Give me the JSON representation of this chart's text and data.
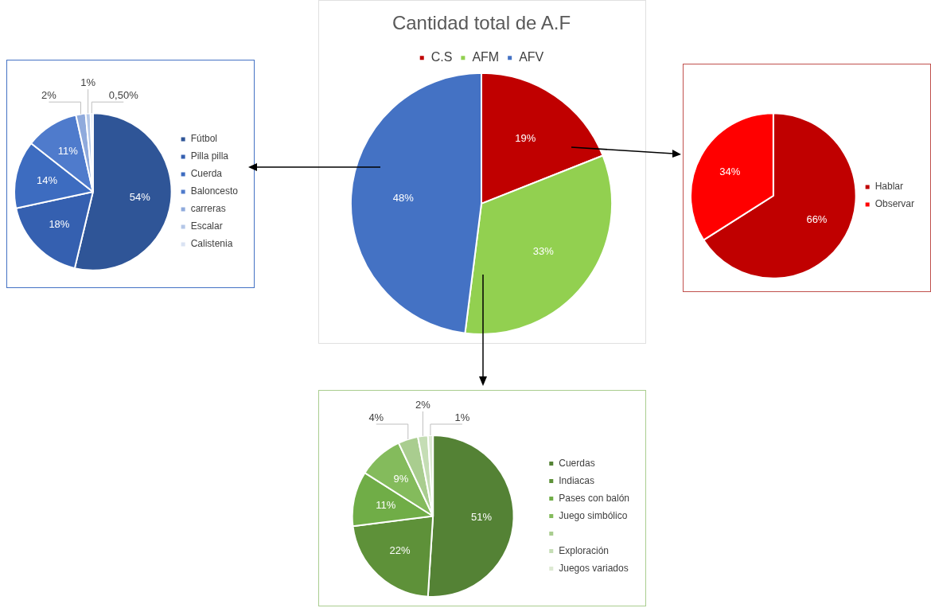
{
  "chart_data": [
    {
      "type": "pie",
      "categories": [
        "Fútbol",
        "Pilla pilla",
        "Cuerda",
        "Baloncesto",
        "carreras",
        "Escalar",
        "Calistenia"
      ],
      "values": [
        54,
        18,
        14,
        11,
        2,
        1,
        0.5
      ],
      "colors": [
        "#2f5597",
        "#3560b0",
        "#3d6cc0",
        "#4f7bcc",
        "#8faadc",
        "#b4c7e7",
        "#dae3f3"
      ],
      "value_labels": [
        "54%",
        "18%",
        "14%",
        "11%",
        "2%",
        "1%",
        "0,50%"
      ],
      "legend": "right"
    },
    {
      "type": "pie",
      "title": "Cantidad total de A.F",
      "categories": [
        "C.S",
        "AFM",
        "AFV"
      ],
      "values": [
        19,
        33,
        48
      ],
      "colors": [
        "#c00000",
        "#92d050",
        "#4472c4"
      ],
      "value_labels": [
        "19%",
        "33%",
        "48%"
      ],
      "legend": "top"
    },
    {
      "type": "pie",
      "categories": [
        "Hablar",
        "Observar"
      ],
      "values": [
        66,
        34
      ],
      "colors": [
        "#c00000",
        "#ff0000"
      ],
      "value_labels": [
        "66%",
        "34%"
      ],
      "legend": "right"
    },
    {
      "type": "pie",
      "categories": [
        "Cuerdas",
        "Indiacas",
        "Pases con balón",
        "Juego simbólico",
        null,
        "Exploración",
        "Juegos variados"
      ],
      "values": [
        51,
        22,
        11,
        9,
        4,
        2,
        1
      ],
      "colors": [
        "#548235",
        "#5e9139",
        "#70ad47",
        "#84bb5c",
        "#a9cd8f",
        "#c5ddb5",
        "#dde9d3"
      ],
      "value_labels": [
        "51%",
        "22%",
        "11%",
        "9%",
        "4%",
        "2%",
        "1%"
      ],
      "legend": "right"
    }
  ]
}
